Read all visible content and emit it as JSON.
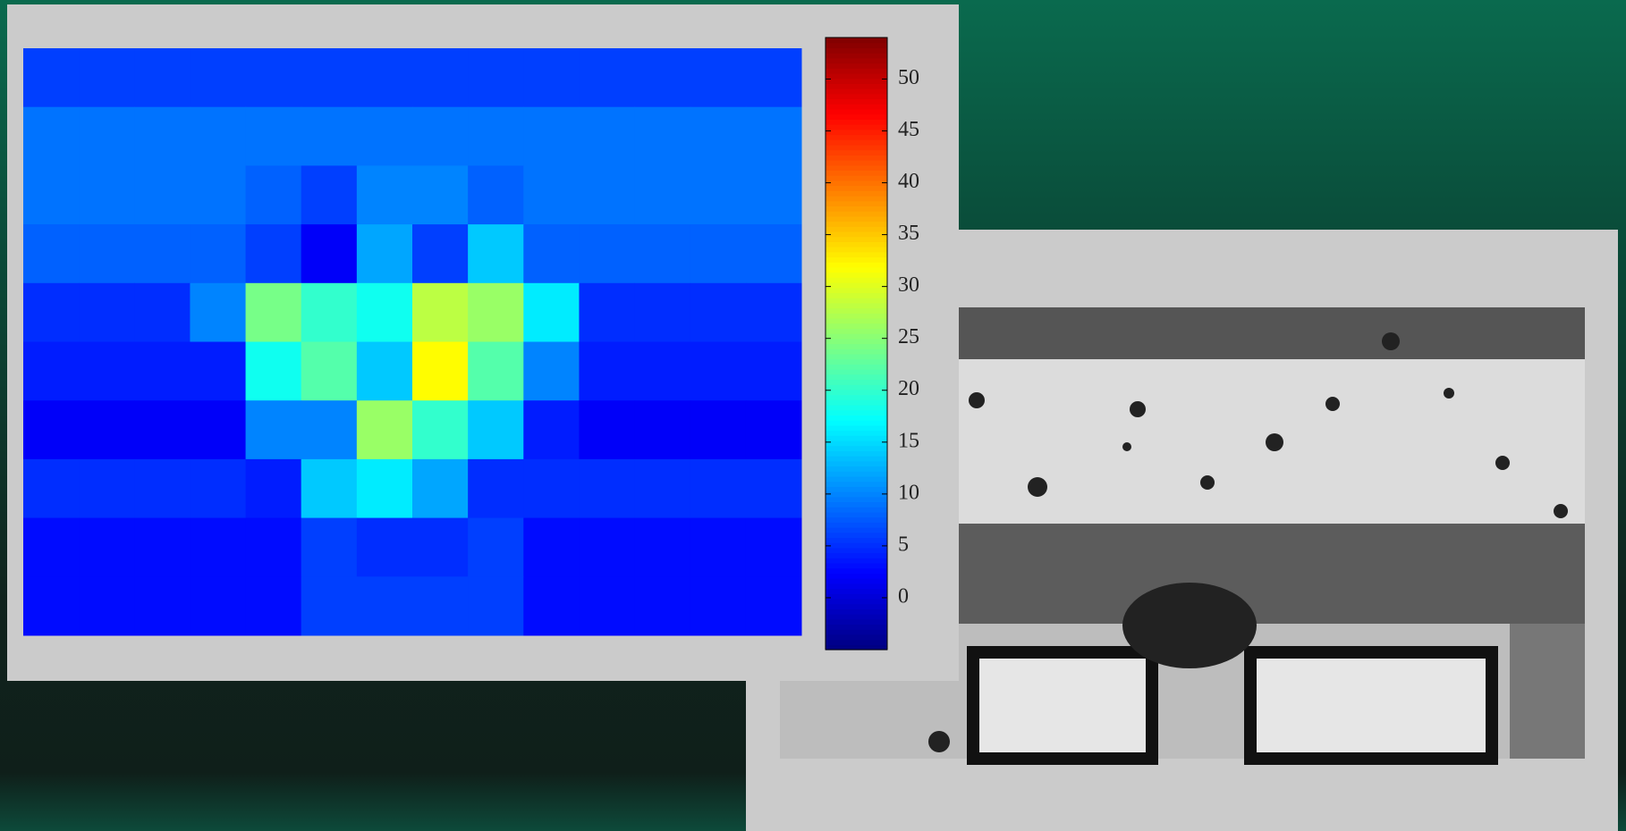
{
  "chart_data": {
    "type": "heatmap",
    "colormap": "jet",
    "values": [
      [
        6,
        6,
        6,
        6,
        6,
        6,
        6,
        6,
        6,
        6,
        6,
        6,
        6,
        6
      ],
      [
        9,
        9,
        9,
        9,
        9,
        9,
        9,
        9,
        9,
        9,
        9,
        9,
        9,
        9
      ],
      [
        9,
        9,
        9,
        9,
        8,
        6,
        10,
        10,
        8,
        9,
        9,
        9,
        9,
        9
      ],
      [
        8,
        8,
        8,
        8,
        6,
        2,
        12,
        6,
        14,
        8,
        8,
        8,
        8,
        8
      ],
      [
        5,
        5,
        5,
        10,
        24,
        20,
        18,
        28,
        26,
        16,
        5,
        5,
        5,
        5
      ],
      [
        4,
        4,
        4,
        4,
        18,
        22,
        14,
        32,
        22,
        10,
        4,
        4,
        4,
        4
      ],
      [
        2,
        2,
        2,
        2,
        10,
        10,
        26,
        20,
        14,
        4,
        2,
        2,
        2,
        2
      ],
      [
        5,
        5,
        5,
        5,
        4,
        14,
        16,
        12,
        5,
        5,
        5,
        5,
        5,
        5
      ],
      [
        3,
        3,
        3,
        3,
        3,
        6,
        5,
        5,
        6,
        3,
        3,
        3,
        3,
        3
      ],
      [
        3,
        3,
        3,
        3,
        3,
        6,
        6,
        6,
        6,
        3,
        3,
        3,
        3,
        3
      ]
    ],
    "clim": [
      -5,
      54
    ],
    "colorbar_ticks": [
      0,
      5,
      10,
      15,
      20,
      25,
      30,
      35,
      40,
      45,
      50
    ]
  }
}
